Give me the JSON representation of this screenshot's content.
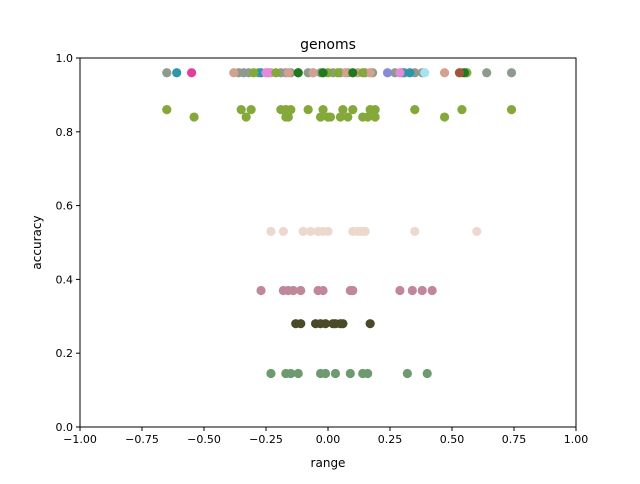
{
  "chart_data": {
    "type": "scatter",
    "title": "genoms",
    "xlabel": "range",
    "ylabel": "accuracy",
    "xlim": [
      -1.0,
      1.0
    ],
    "ylim": [
      0.0,
      1.0
    ],
    "x_ticks": [
      "−1.00",
      "−0.75",
      "−0.50",
      "−0.25",
      "0.00",
      "0.25",
      "0.50",
      "0.75",
      "1.00"
    ],
    "y_ticks": [
      "0.0",
      "0.2",
      "0.4",
      "0.6",
      "0.8",
      "1.0"
    ],
    "grid": false,
    "series": [
      {
        "color": "#8e9a8e",
        "y": 0.96,
        "x": [
          -0.65,
          -0.36,
          -0.34,
          -0.32,
          -0.28,
          -0.24,
          -0.19,
          -0.17,
          -0.15,
          -0.12,
          -0.08,
          -0.06,
          -0.03,
          0.02,
          0.05,
          0.08,
          0.15,
          0.18,
          0.27,
          0.31,
          0.35,
          0.38,
          0.54,
          0.64,
          0.74
        ]
      },
      {
        "color": "#2e96a8",
        "y": 0.96,
        "x": [
          -0.61,
          -0.27,
          0.3,
          0.33
        ]
      },
      {
        "color": "#e0409a",
        "y": 0.96,
        "x": [
          -0.55
        ]
      },
      {
        "color": "#d4a090",
        "y": 0.96,
        "x": [
          -0.38,
          -0.16,
          -0.06,
          0.07,
          0.12,
          0.17,
          0.47
        ]
      },
      {
        "color": "#e68ad8",
        "y": 0.96,
        "x": [
          -0.25,
          -0.23,
          0.29
        ]
      },
      {
        "color": "#84a83a",
        "y": 0.96,
        "x": [
          -0.3,
          -0.21,
          0.0,
          0.04,
          0.14,
          0.56
        ]
      },
      {
        "color": "#1e7a1e",
        "y": 0.96,
        "x": [
          -0.12,
          -0.02,
          0.1,
          0.55
        ]
      },
      {
        "color": "#8a8ad8",
        "y": 0.96,
        "x": [
          0.24
        ]
      },
      {
        "color": "#a8e2f0",
        "y": 0.96,
        "x": [
          0.39
        ]
      },
      {
        "color": "#a0563a",
        "y": 0.96,
        "x": [
          0.53
        ]
      },
      {
        "color": "#84a83a",
        "y": 0.86,
        "x": [
          -0.65,
          -0.35,
          -0.31,
          -0.19,
          -0.17,
          -0.15,
          -0.08,
          -0.02,
          0.06,
          0.1,
          0.17,
          0.19,
          0.35,
          0.54,
          0.74
        ]
      },
      {
        "color": "#84a83a",
        "y": 0.84,
        "x": [
          -0.54,
          -0.33,
          -0.17,
          -0.16,
          -0.03,
          0.0,
          0.01,
          0.05,
          0.08,
          0.14,
          0.16,
          0.19,
          0.47
        ]
      },
      {
        "color": "#edd8ce",
        "y": 0.53,
        "x": [
          -0.23,
          -0.18,
          -0.1,
          -0.07,
          -0.04,
          -0.02,
          0.0,
          0.1,
          0.12,
          0.13,
          0.14,
          0.15,
          0.35,
          0.6
        ]
      },
      {
        "color": "#c08898",
        "y": 0.37,
        "x": [
          -0.27,
          -0.18,
          -0.16,
          -0.14,
          -0.11,
          -0.04,
          -0.02,
          0.09,
          0.1,
          0.29,
          0.34,
          0.38,
          0.42
        ]
      },
      {
        "color": "#4a4a28",
        "y": 0.28,
        "x": [
          -0.13,
          -0.11,
          -0.05,
          -0.03,
          -0.01,
          0.02,
          0.03,
          0.05,
          0.06,
          0.17
        ]
      },
      {
        "color": "#6e9a70",
        "y": 0.145,
        "x": [
          -0.23,
          -0.17,
          -0.15,
          -0.12,
          -0.03,
          -0.01,
          0.03,
          0.09,
          0.14,
          0.16,
          0.32,
          0.4
        ]
      }
    ]
  }
}
